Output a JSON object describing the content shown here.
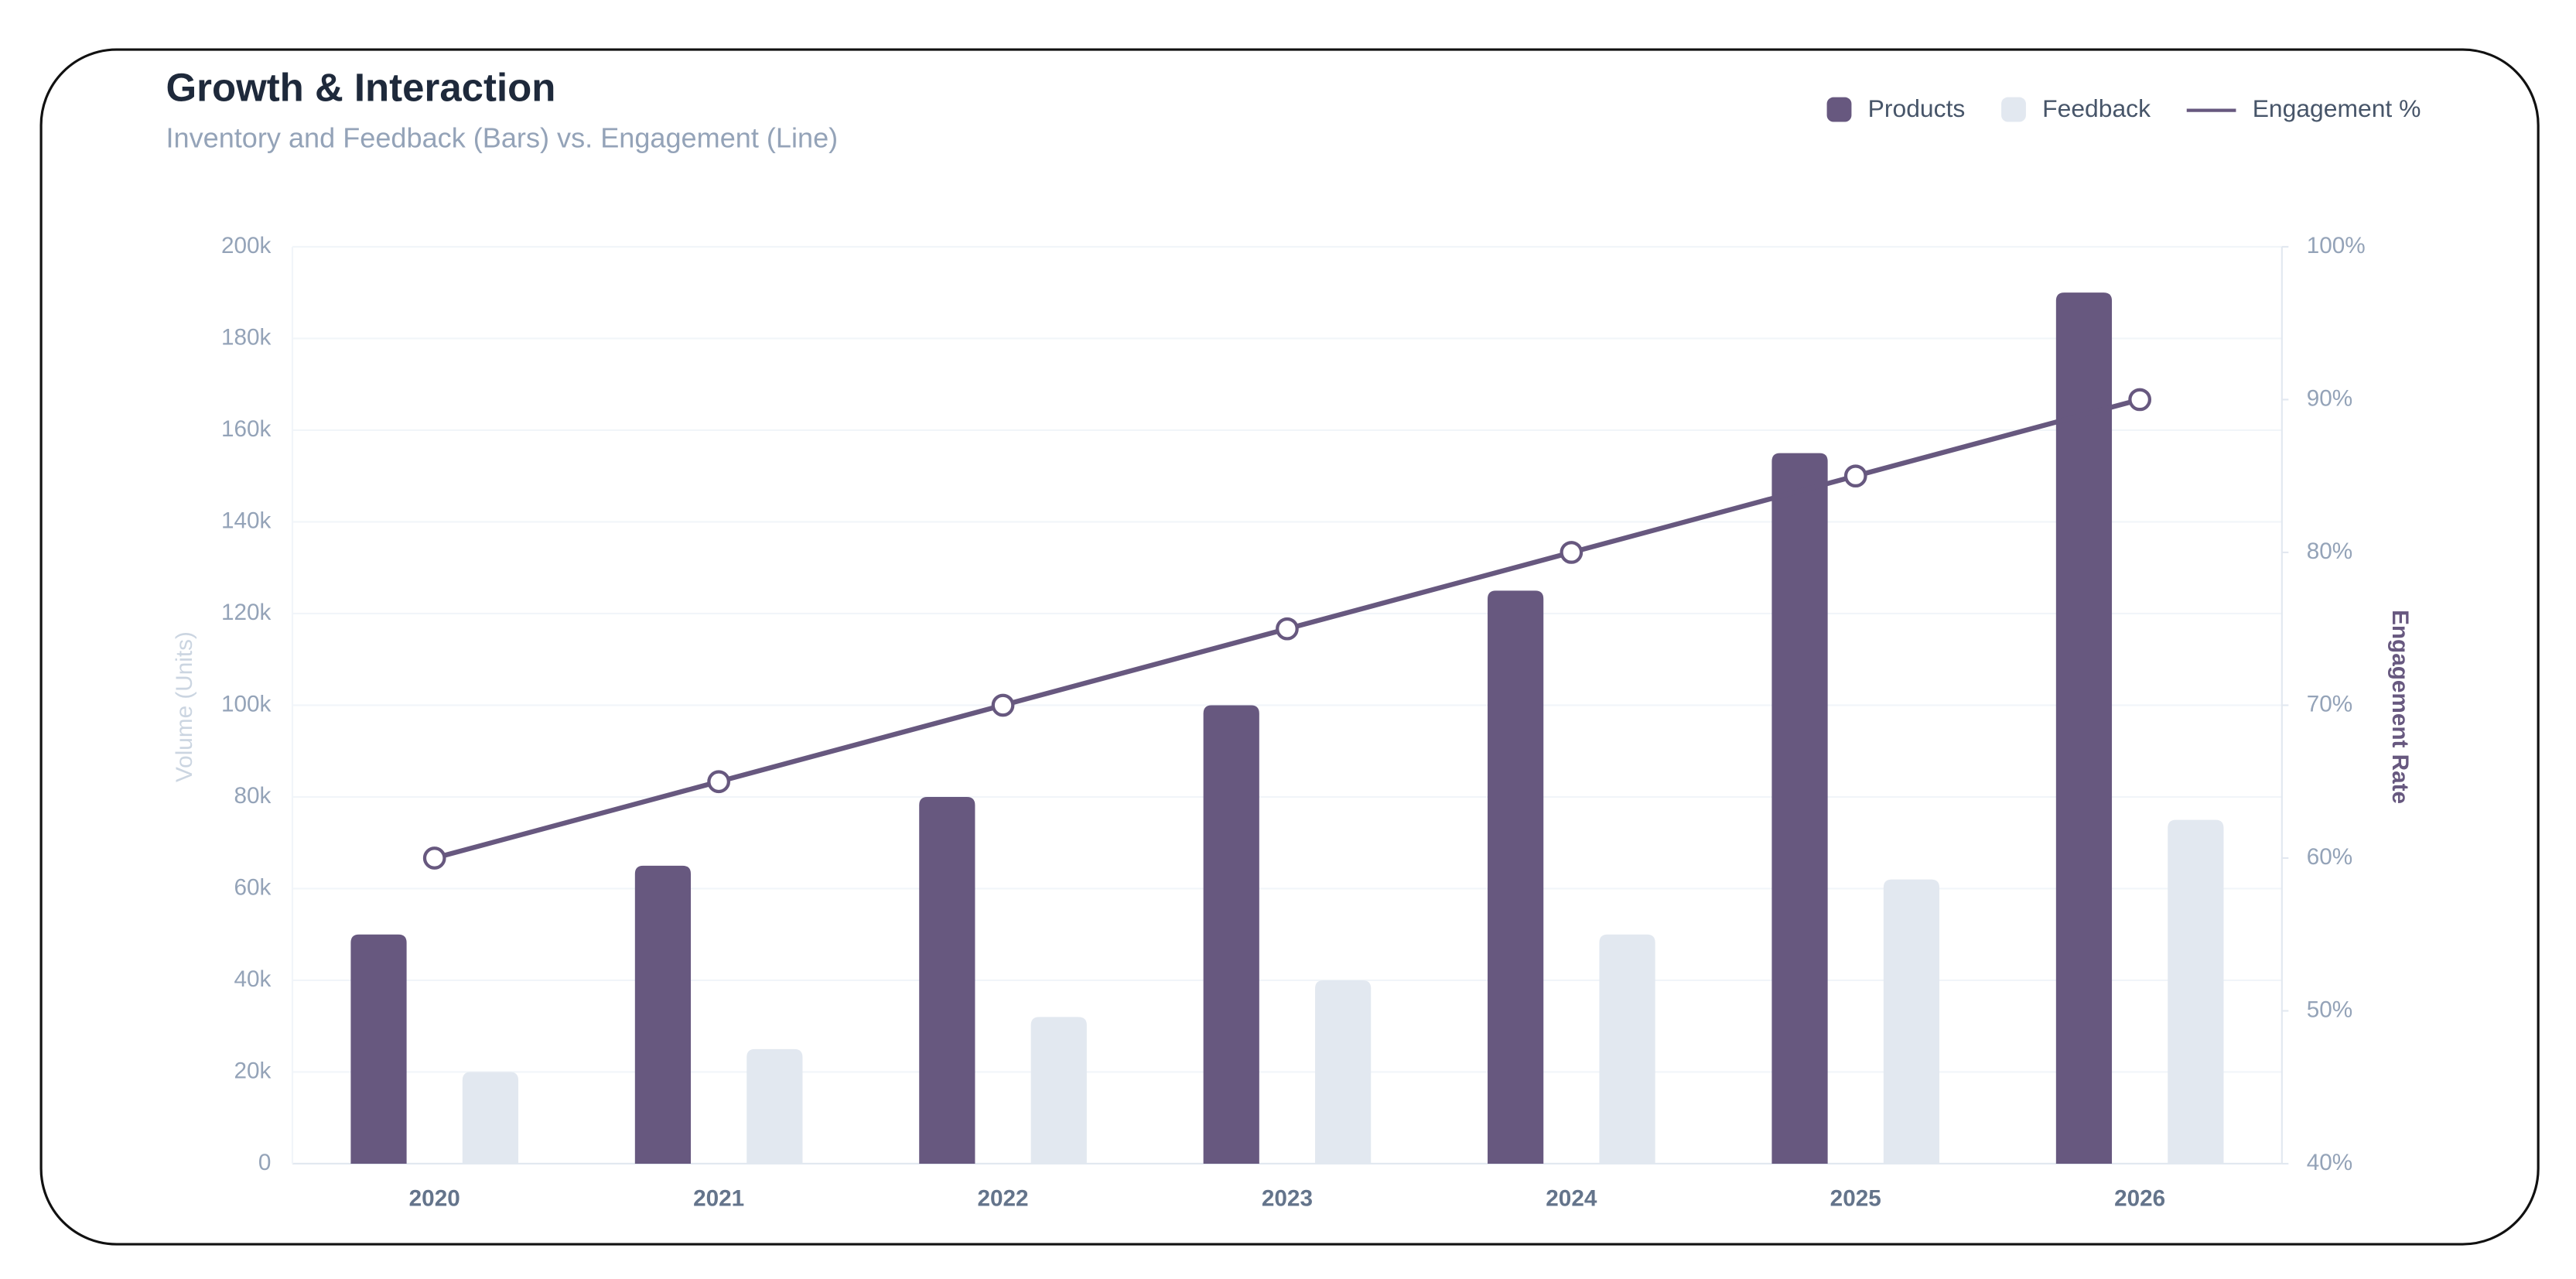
{
  "chart_data": {
    "type": "bar_line",
    "title": "Growth & Interaction",
    "subtitle": "Inventory and Feedback (Bars) vs. Engagement (Line)",
    "y_label": "Volume (Units)",
    "y2_label": "Engagement Rate",
    "categories": [
      "2020",
      "2021",
      "2022",
      "2023",
      "2024",
      "2025",
      "2026"
    ],
    "series": [
      {
        "name": "Products",
        "type": "bar",
        "color": "#67587f",
        "values": [
          50000,
          65000,
          80000,
          100000,
          125000,
          155000,
          190000
        ]
      },
      {
        "name": "Feedback",
        "type": "bar",
        "color": "#e2e8f0",
        "values": [
          20000,
          25000,
          32000,
          40000,
          50000,
          62000,
          75000
        ]
      },
      {
        "name": "Engagement %",
        "type": "line",
        "axis": "y2",
        "color": "#67587f",
        "values": [
          60,
          65,
          70,
          75,
          80,
          85,
          90
        ]
      }
    ],
    "ylim": [
      0,
      200000
    ],
    "yticks": [
      0,
      {
        "value": 20000,
        "label": "20k"
      },
      {
        "value": 40000,
        "label": "40k"
      },
      {
        "value": 60000,
        "label": "60k"
      },
      {
        "value": 80000,
        "label": "80k"
      },
      {
        "value": 100000,
        "label": "100k"
      },
      {
        "value": 120000,
        "label": "120k"
      },
      {
        "value": 140000,
        "label": "140k"
      },
      {
        "value": 160000,
        "label": "160k"
      },
      {
        "value": 180000,
        "label": "180k"
      },
      {
        "value": 200000,
        "label": "200k"
      }
    ],
    "y2lim": [
      40,
      100
    ],
    "y2ticks": [
      {
        "value": 40,
        "label": "40%"
      },
      {
        "value": 50,
        "label": "50%"
      },
      {
        "value": 60,
        "label": "60%"
      },
      {
        "value": 70,
        "label": "70%"
      },
      {
        "value": 80,
        "label": "80%"
      },
      {
        "value": 90,
        "label": "90%"
      },
      {
        "value": 100,
        "label": "100%"
      }
    ],
    "grid": true,
    "legend": "top-right"
  }
}
